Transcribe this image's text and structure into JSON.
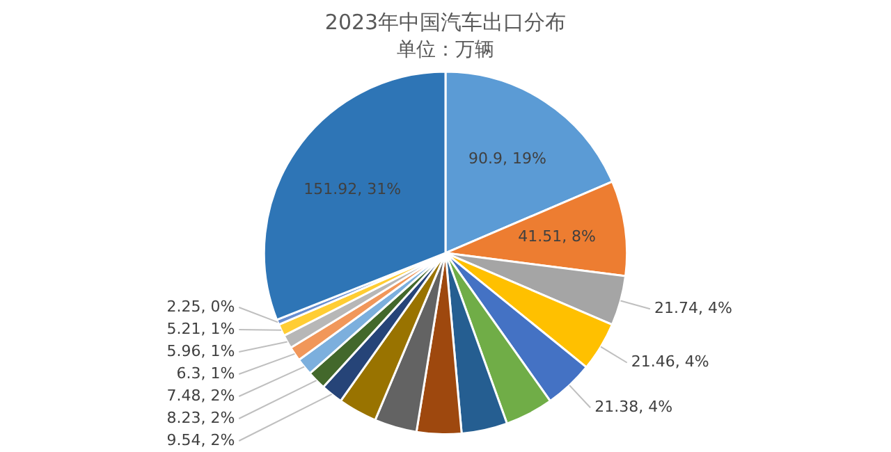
{
  "chart_data": {
    "type": "pie",
    "title": "2023年中国汽车出口分布",
    "subtitle": "单位：万辆",
    "categories": [
      null,
      null,
      null,
      null,
      null,
      null,
      null,
      null,
      null,
      null,
      null,
      null,
      null,
      null,
      null,
      null,
      null,
      null
    ],
    "values": [
      90.9,
      41.51,
      21.74,
      21.46,
      21.38,
      21,
      20,
      19.5,
      18.5,
      17,
      9.54,
      8.23,
      7.48,
      6.3,
      5.96,
      5.21,
      2.25,
      151.92
    ],
    "value_labels": [
      "90.9, 19%",
      "41.51, 8%",
      "21.74, 4%",
      "21.46, 4%",
      "21.38, 4%",
      null,
      null,
      null,
      null,
      null,
      "9.54, 2%",
      "8.23, 2%",
      "7.48, 2%",
      "6.3, 1%",
      "5.96, 1%",
      "5.21, 1%",
      "2.25, 0%",
      "151.92, 31%"
    ],
    "colors": [
      "#5b9bd5",
      "#ed7d31",
      "#a5a5a5",
      "#ffc000",
      "#4472c4",
      "#70ad47",
      "#255e91",
      "#9e480e",
      "#636363",
      "#997300",
      "#264478",
      "#43682b",
      "#7cafdd",
      "#f1975a",
      "#b7b7b7",
      "#ffcd33",
      "#698ed0",
      "#2e75b6"
    ],
    "legend": false
  }
}
